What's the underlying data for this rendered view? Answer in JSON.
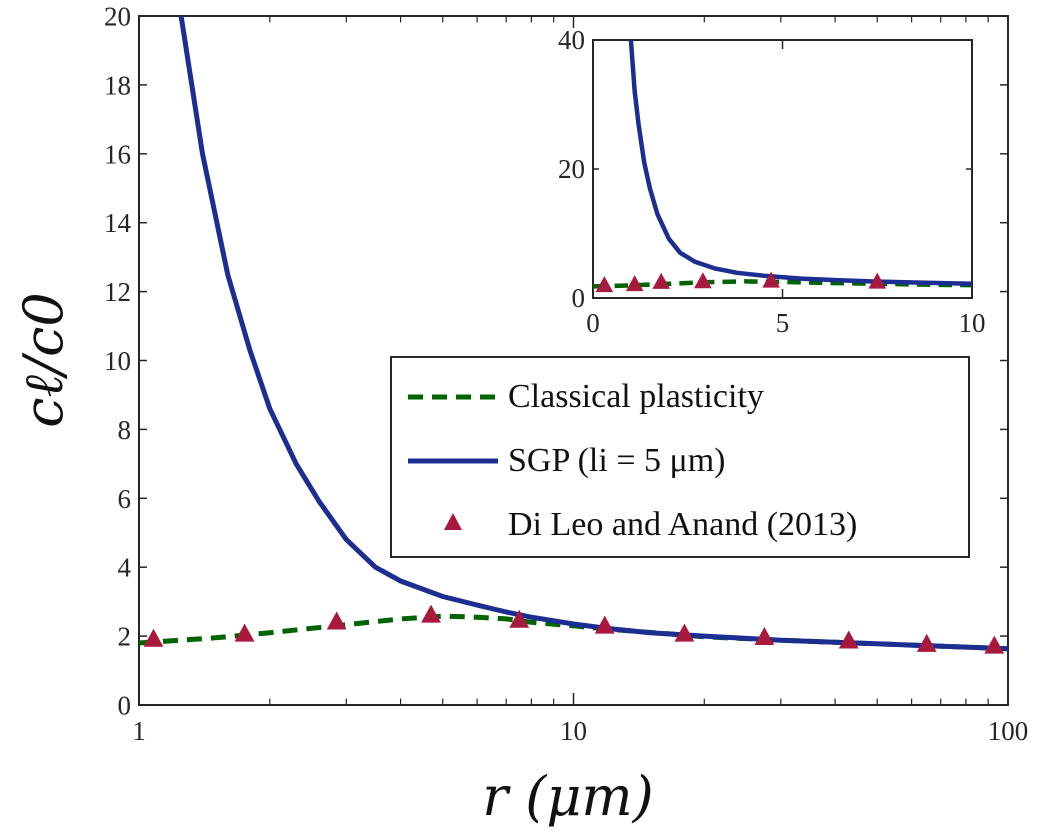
{
  "chart_data": [
    {
      "type": "line",
      "xscale": "log",
      "xlim": [
        1,
        100
      ],
      "ylim": [
        0,
        20
      ],
      "xticks": [
        1,
        10,
        100
      ],
      "xtick_labels": [
        "1",
        "10",
        "100"
      ],
      "yticks": [
        0,
        2,
        4,
        6,
        8,
        10,
        12,
        14,
        16,
        18,
        20
      ],
      "ytick_labels": [
        "0",
        "2",
        "4",
        "6",
        "8",
        "10",
        "12",
        "14",
        "16",
        "18",
        "20"
      ],
      "xlabel": "r (μm)",
      "ylabel": "cℓ/c0",
      "legend_position": "center-right",
      "grid": false,
      "series": [
        {
          "name": "Classical plasticity",
          "style": "dashed",
          "color": "#006400",
          "x": [
            1.0,
            1.5,
            2.0,
            3.0,
            4.0,
            5.0,
            6.0,
            7.0,
            8.0,
            10.0,
            12.0,
            16.0,
            20.0,
            30.0,
            40.0,
            60.0,
            80.0,
            100.0
          ],
          "y": [
            1.8,
            1.95,
            2.1,
            2.33,
            2.5,
            2.58,
            2.55,
            2.5,
            2.4,
            2.3,
            2.2,
            2.08,
            1.98,
            1.88,
            1.82,
            1.74,
            1.68,
            1.63
          ]
        },
        {
          "name": "SGP (li = 5 μm)",
          "style": "solid",
          "color": "#1c2e91",
          "x": [
            1.25,
            1.4,
            1.6,
            1.8,
            2.0,
            2.3,
            2.6,
            3.0,
            3.5,
            4.0,
            5.0,
            6.0,
            7.0,
            8.0,
            10.0,
            12.0,
            15.0,
            20.0,
            30.0,
            40.0,
            60.0,
            80.0,
            100.0
          ],
          "y": [
            20,
            16.0,
            12.5,
            10.3,
            8.6,
            7.0,
            5.9,
            4.8,
            4.0,
            3.6,
            3.15,
            2.9,
            2.7,
            2.55,
            2.35,
            2.22,
            2.1,
            2.0,
            1.88,
            1.82,
            1.74,
            1.68,
            1.63
          ]
        },
        {
          "name": "Di Leo and Anand (2013)",
          "style": "marker",
          "marker": "triangle",
          "color": "#a8193d",
          "x": [
            1.08,
            1.75,
            2.85,
            4.7,
            7.5,
            11.8,
            18.0,
            27.5,
            43.0,
            65.0,
            93.0
          ],
          "y": [
            1.9,
            2.05,
            2.4,
            2.6,
            2.45,
            2.28,
            2.05,
            1.95,
            1.85,
            1.75,
            1.7
          ]
        }
      ]
    },
    {
      "type": "line",
      "xscale": "linear",
      "xlim": [
        0,
        10
      ],
      "ylim": [
        0,
        40
      ],
      "xticks": [
        0,
        5,
        10
      ],
      "xtick_labels": [
        "0",
        "5",
        "10"
      ],
      "yticks": [
        0,
        20,
        40
      ],
      "ytick_labels": [
        "0",
        "20",
        "40"
      ],
      "grid": false,
      "series": [
        {
          "style": "dashed",
          "color": "#006400",
          "x": [
            0,
            1,
            2,
            3,
            4,
            5,
            6,
            7,
            8,
            9,
            10
          ],
          "y": [
            1.8,
            1.95,
            2.2,
            2.45,
            2.58,
            2.5,
            2.35,
            2.25,
            2.15,
            2.05,
            2.0
          ]
        },
        {
          "style": "solid",
          "color": "#1c2e91",
          "x": [
            1.0,
            1.1,
            1.2,
            1.35,
            1.5,
            1.7,
            2.0,
            2.3,
            2.7,
            3.2,
            3.8,
            4.5,
            5.5,
            6.5,
            7.5,
            8.5,
            10.0
          ],
          "y": [
            40,
            32,
            27,
            21,
            17,
            13,
            9.2,
            7.0,
            5.6,
            4.6,
            3.9,
            3.45,
            3.0,
            2.75,
            2.55,
            2.4,
            2.2
          ]
        },
        {
          "style": "marker",
          "marker": "triangle",
          "color": "#a8193d",
          "x": [
            0.3,
            1.1,
            1.8,
            2.9,
            4.7,
            7.5
          ],
          "y": [
            1.9,
            2.05,
            2.4,
            2.5,
            2.6,
            2.45
          ]
        }
      ]
    }
  ]
}
